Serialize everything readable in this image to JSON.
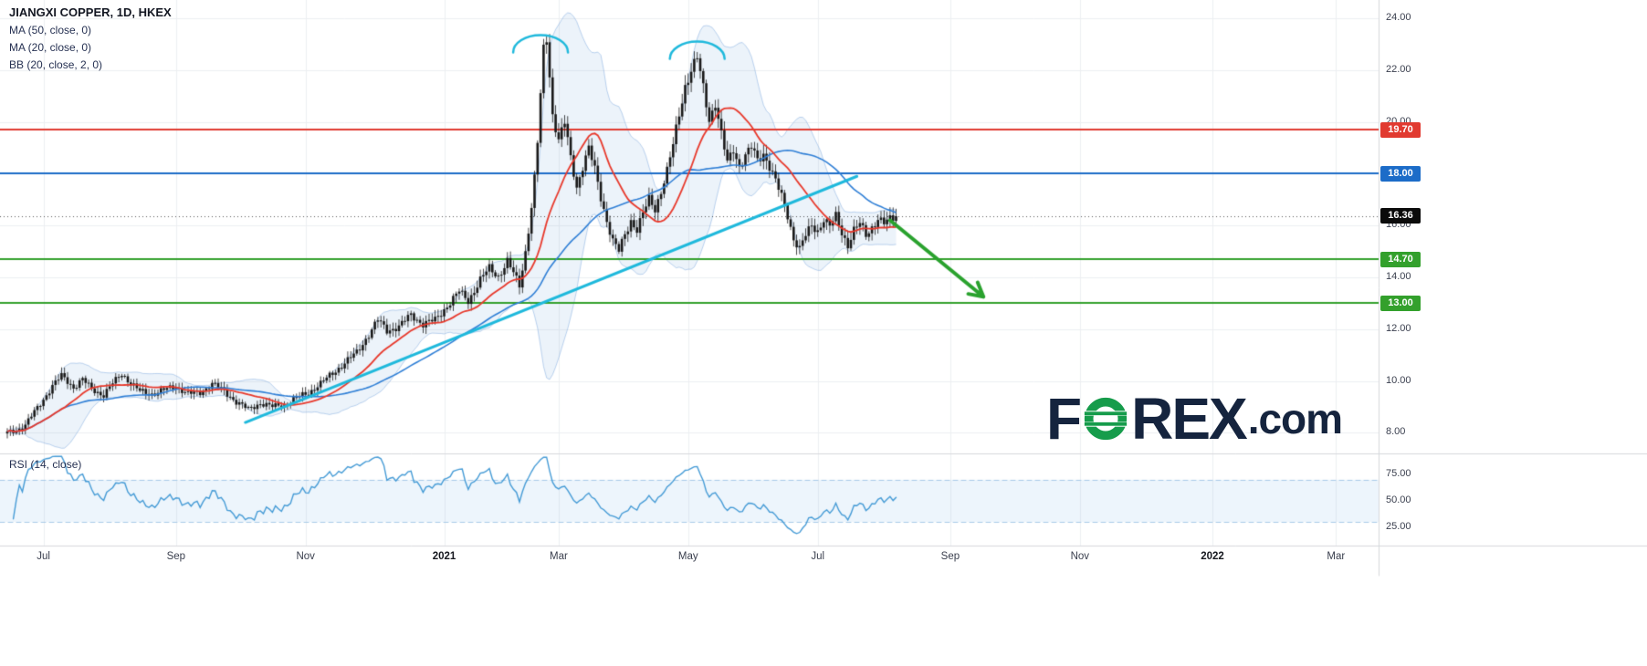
{
  "legend": {
    "title": "JIANGXI COPPER, 1D, HKEX",
    "indicators": [
      "MA (50, close, 0)",
      "MA (20, close, 0)",
      "BB (20, close, 2, 0)"
    ]
  },
  "rsi": {
    "label": "RSI (14, close)",
    "period": 14,
    "ticks": [
      75,
      50,
      25
    ],
    "band": [
      30,
      70
    ]
  },
  "logo": {
    "f": "F",
    "rex": "REX",
    "dotcom": ".com",
    "navy": "#15243e",
    "green": "#169c4b"
  },
  "colors": {
    "background": "#ffffff",
    "grid": "#edeff2",
    "separator": "#d6d8dc",
    "candle": "#181818",
    "bb_fill": "rgba(110,160,220,0.13)",
    "bb_edge": "rgba(110,160,220,0.45)",
    "trend": "#1fb9dc",
    "arrow": "#2aa22e",
    "rsi_line": "#459bd6",
    "rsi_band_fill": "rgba(130,185,235,0.14)",
    "rsi_band_edge": "#a9cbe8",
    "axis_text": "#3a3f4e",
    "legend_text": "#273253"
  },
  "chart_data": {
    "type": "candlestick",
    "symbol": "JIANGXI COPPER",
    "timeframe": "1D",
    "exchange": "HKEX",
    "price_axis": {
      "min": 8,
      "max": 24,
      "ticks": [
        24,
        22,
        20,
        18,
        16,
        14,
        12,
        10,
        8
      ]
    },
    "time_ticks": [
      {
        "label": "Jul",
        "day": 12
      },
      {
        "label": "Sep",
        "day": 56
      },
      {
        "label": "Nov",
        "day": 99
      },
      {
        "label": "2021",
        "day": 145,
        "major": true
      },
      {
        "label": "Mar",
        "day": 183
      },
      {
        "label": "May",
        "day": 226
      },
      {
        "label": "Jul",
        "day": 269
      },
      {
        "label": "Sep",
        "day": 313
      },
      {
        "label": "Nov",
        "day": 356
      },
      {
        "label": "2022",
        "day": 400,
        "major": true
      },
      {
        "label": "Mar",
        "day": 441
      }
    ],
    "levels": [
      {
        "value": 19.7,
        "label": "19.70",
        "color": "#e13a30"
      },
      {
        "value": 18.0,
        "label": "18.00",
        "color": "#1c6cc8"
      },
      {
        "value": 14.7,
        "label": "14.70",
        "color": "#33a02c"
      },
      {
        "value": 13.0,
        "label": "13.00",
        "color": "#33a02c"
      }
    ],
    "last_price": {
      "value": 16.36,
      "label": "16.36",
      "badge": "#0b0b0b"
    },
    "bars_total": 296,
    "close_keypoints": [
      [
        0,
        8.0
      ],
      [
        3,
        8.1
      ],
      [
        6,
        8.3
      ],
      [
        9,
        8.8
      ],
      [
        12,
        9.3
      ],
      [
        15,
        9.8
      ],
      [
        18,
        10.2
      ],
      [
        20,
        10.0
      ],
      [
        22,
        9.75
      ],
      [
        25,
        10.05
      ],
      [
        28,
        9.7
      ],
      [
        32,
        9.45
      ],
      [
        35,
        9.9
      ],
      [
        38,
        10.3
      ],
      [
        41,
        9.9
      ],
      [
        44,
        9.6
      ],
      [
        48,
        9.5
      ],
      [
        52,
        9.65
      ],
      [
        56,
        9.8
      ],
      [
        60,
        9.5
      ],
      [
        64,
        9.55
      ],
      [
        68,
        9.9
      ],
      [
        72,
        9.6
      ],
      [
        76,
        9.2
      ],
      [
        80,
        8.9
      ],
      [
        84,
        9.15
      ],
      [
        88,
        9.0
      ],
      [
        92,
        9.1
      ],
      [
        96,
        9.35
      ],
      [
        100,
        9.55
      ],
      [
        104,
        9.9
      ],
      [
        108,
        10.3
      ],
      [
        112,
        10.7
      ],
      [
        116,
        11.1
      ],
      [
        120,
        11.8
      ],
      [
        123,
        12.35
      ],
      [
        126,
        11.95
      ],
      [
        130,
        12.1
      ],
      [
        134,
        12.55
      ],
      [
        138,
        12.2
      ],
      [
        142,
        12.35
      ],
      [
        146,
        12.9
      ],
      [
        150,
        13.45
      ],
      [
        153,
        13.1
      ],
      [
        157,
        13.9
      ],
      [
        160,
        14.35
      ],
      [
        163,
        14.05
      ],
      [
        166,
        14.6
      ],
      [
        168,
        14.15
      ],
      [
        170,
        13.7
      ],
      [
        172,
        15.0
      ],
      [
        174,
        16.7
      ],
      [
        175,
        17.8
      ],
      [
        176,
        19.2
      ],
      [
        177,
        21.0
      ],
      [
        178,
        22.8
      ],
      [
        179,
        23.25
      ],
      [
        180,
        21.8
      ],
      [
        181,
        20.3
      ],
      [
        183,
        19.3
      ],
      [
        185,
        19.95
      ],
      [
        187,
        18.6
      ],
      [
        189,
        17.5
      ],
      [
        191,
        18.3
      ],
      [
        193,
        18.95
      ],
      [
        195,
        18.15
      ],
      [
        197,
        17.1
      ],
      [
        199,
        16.2
      ],
      [
        201,
        15.4
      ],
      [
        203,
        15.0
      ],
      [
        205,
        15.65
      ],
      [
        207,
        16.2
      ],
      [
        209,
        15.85
      ],
      [
        211,
        16.45
      ],
      [
        213,
        17.0
      ],
      [
        215,
        16.65
      ],
      [
        217,
        17.35
      ],
      [
        219,
        18.1
      ],
      [
        221,
        19.1
      ],
      [
        223,
        20.3
      ],
      [
        225,
        21.4
      ],
      [
        227,
        22.0
      ],
      [
        229,
        22.45
      ],
      [
        231,
        21.3
      ],
      [
        233,
        20.1
      ],
      [
        235,
        20.75
      ],
      [
        237,
        19.5
      ],
      [
        239,
        18.4
      ],
      [
        241,
        18.95
      ],
      [
        243,
        18.3
      ],
      [
        245,
        18.7
      ],
      [
        247,
        19.0
      ],
      [
        249,
        18.5
      ],
      [
        251,
        18.8
      ],
      [
        253,
        18.3
      ],
      [
        255,
        17.7
      ],
      [
        257,
        17.1
      ],
      [
        259,
        16.4
      ],
      [
        261,
        15.5
      ],
      [
        263,
        15.1
      ],
      [
        265,
        15.6
      ],
      [
        267,
        16.0
      ],
      [
        269,
        15.8
      ],
      [
        271,
        16.25
      ],
      [
        273,
        15.95
      ],
      [
        275,
        16.35
      ],
      [
        277,
        15.75
      ],
      [
        279,
        15.25
      ],
      [
        281,
        15.8
      ],
      [
        283,
        16.05
      ],
      [
        285,
        15.65
      ],
      [
        287,
        15.95
      ],
      [
        289,
        16.25
      ],
      [
        291,
        16.05
      ],
      [
        293,
        16.25
      ],
      [
        295,
        16.36
      ]
    ],
    "moving_averages": [
      {
        "period": 50,
        "color": "#2f7fd6"
      },
      {
        "period": 20,
        "color": "#e8392c"
      }
    ],
    "bollinger": {
      "period": 20,
      "mult": 2
    },
    "annotations": {
      "trendline": {
        "from": [
          79,
          8.4
        ],
        "to": [
          282,
          17.9
        ],
        "color": "#1fb9dc"
      },
      "arcs": [
        {
          "day": 177,
          "apex_price": 23.35
        },
        {
          "day": 229,
          "apex_price": 23.1
        }
      ],
      "arrow": {
        "from": [
          293,
          16.2
        ],
        "to": [
          324,
          13.25
        ],
        "color": "#2aa22e"
      }
    }
  }
}
